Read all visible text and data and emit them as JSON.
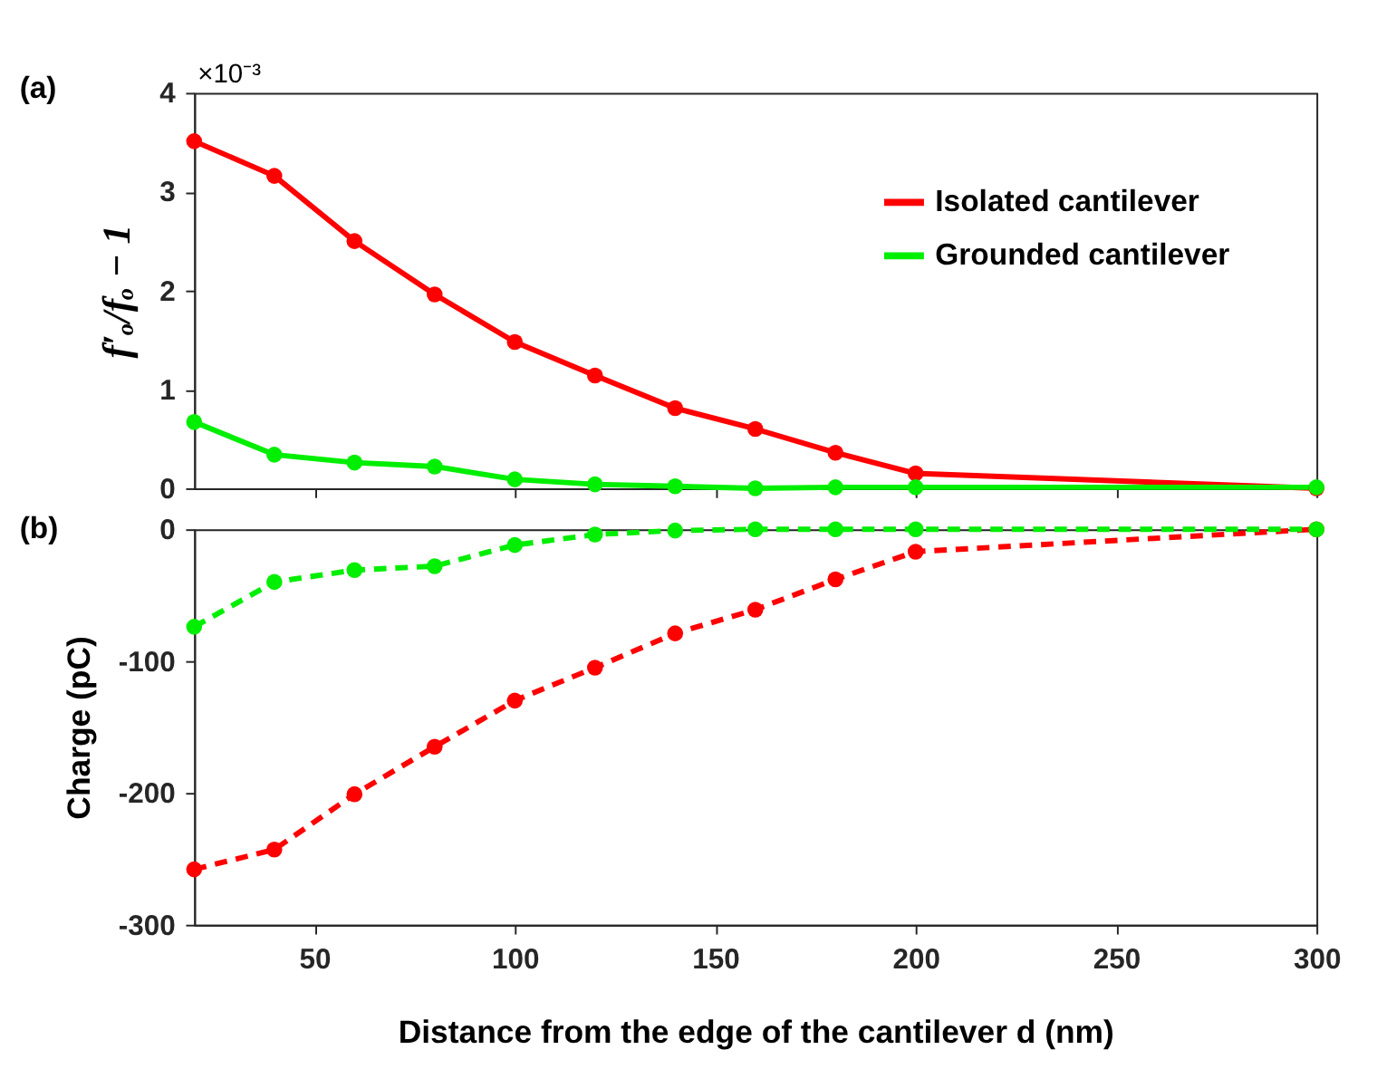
{
  "chart_data": [
    {
      "type": "line",
      "title": "(a)",
      "ylabel": "f′ₒ/fₒ − 1",
      "annotations": [
        "×10⁻³"
      ],
      "x": [
        20,
        40,
        60,
        80,
        100,
        120,
        140,
        160,
        180,
        200,
        300
      ],
      "xlim": [
        20,
        300
      ],
      "xticks": [
        50,
        100,
        150,
        200,
        250,
        300
      ],
      "ylim": [
        0,
        4
      ],
      "yticks": [
        0,
        1,
        2,
        3,
        4
      ],
      "series": [
        {
          "name": "Isolated cantilever",
          "color": "#ff0000",
          "values": [
            3.51,
            3.16,
            2.5,
            1.96,
            1.48,
            1.14,
            0.81,
            0.6,
            0.36,
            0.15,
            0.0
          ]
        },
        {
          "name": "Grounded cantilever",
          "color": "#00ee00",
          "values": [
            0.67,
            0.34,
            0.26,
            0.22,
            0.09,
            0.04,
            0.02,
            0.0,
            0.01,
            0.01,
            0.01
          ]
        }
      ],
      "legend": "top right",
      "marker": "circle",
      "line_style": "solid",
      "tick_labels": "y",
      "grid": false
    },
    {
      "type": "line",
      "title": "(b)",
      "xlabel": "Distance from the edge of the cantilever d (nm)",
      "ylabel": "Charge (pC)",
      "x": [
        20,
        40,
        60,
        80,
        100,
        120,
        140,
        160,
        180,
        200,
        300
      ],
      "xlim": [
        20,
        300
      ],
      "xticks": [
        50,
        100,
        150,
        200,
        250,
        300
      ],
      "ylim": [
        -300,
        0
      ],
      "yticks": [
        -300,
        -200,
        -100,
        0
      ],
      "series": [
        {
          "color": "#ff0000",
          "values": [
            -258,
            -243,
            -201,
            -165,
            -130,
            -105,
            -79,
            -61,
            -38,
            -17,
            0
          ]
        },
        {
          "color": "#00ee00",
          "values": [
            -74,
            -40,
            -31,
            -28,
            -12,
            -4,
            -1,
            0,
            0,
            0,
            0
          ]
        }
      ],
      "marker": "circle",
      "line_style": "dashed",
      "grid": false
    }
  ]
}
